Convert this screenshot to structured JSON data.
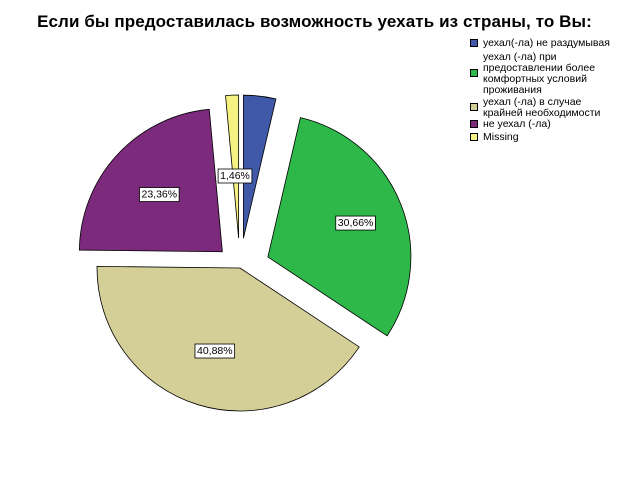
{
  "chart_data": {
    "type": "pie",
    "title": "Если бы предоставилась возможность уехать из страны, то Вы:",
    "slices": [
      {
        "name": "уехал(-ла) не раздумывая",
        "value": 3.65,
        "color": "#3f58a8"
      },
      {
        "name": "уехал (-ла) при предоставлении более комфортных условий проживания",
        "value": 30.66,
        "label": "30,66%",
        "color": "#2fb84a"
      },
      {
        "name": "уехал (-ла) в случае крайней необходимости",
        "value": 40.88,
        "label": "40,88%",
        "color": "#d3cf96"
      },
      {
        "name": "не уехал (-ла)",
        "value": 23.36,
        "label": "23,36%",
        "color": "#7b2a7c"
      },
      {
        "name": "Missing",
        "value": 1.46,
        "label": "1,46%",
        "color": "#f5f281"
      }
    ],
    "legend": {
      "position": "top-right",
      "entries": [
        {
          "text": "уехал(-ла) не раздумывая",
          "color": "#3f58a8"
        },
        {
          "text": "уехал (-ла) при предоставлении более комфортных условий проживания",
          "color": "#2fb84a"
        },
        {
          "text": "уехал (-ла) в случае крайней необходимости",
          "color": "#d3cf96"
        },
        {
          "text": "не уехал (-ла)",
          "color": "#7b2a7c"
        },
        {
          "text": "Missing",
          "color": "#f5f281"
        }
      ]
    },
    "exploded": true,
    "start_angle_deg": 0,
    "direction": "clockwise"
  }
}
